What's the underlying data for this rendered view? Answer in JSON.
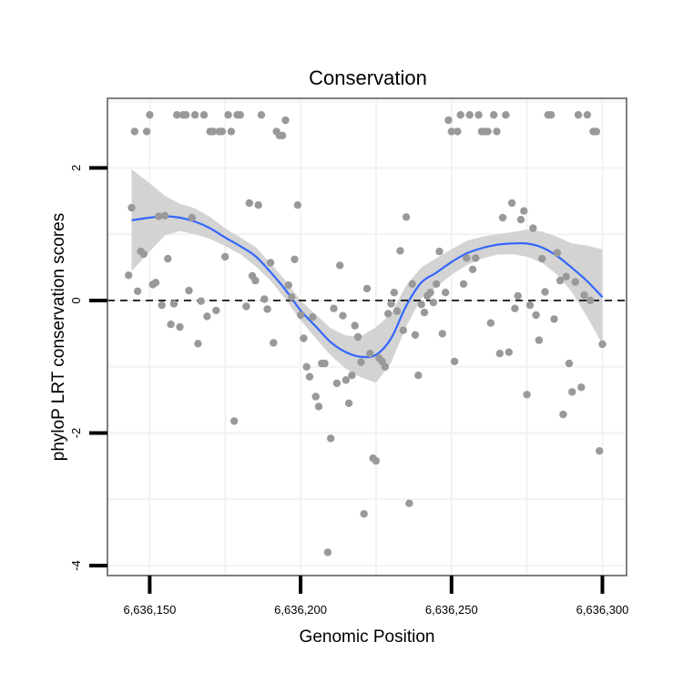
{
  "chart_data": {
    "type": "scatter",
    "title": "Conservation",
    "xlabel": "Genomic Position",
    "ylabel": "phyloP LRT conservation scores",
    "xlim": [
      6636136,
      6636308
    ],
    "ylim": [
      -4.15,
      3.05
    ],
    "x_ticks": [
      {
        "value": 6636150,
        "label": "6,636,150"
      },
      {
        "value": 6636200,
        "label": "6,636,200"
      },
      {
        "value": 6636250,
        "label": "6,636,250"
      },
      {
        "value": 6636300,
        "label": "6,636,300"
      }
    ],
    "y_ticks": [
      {
        "value": 2,
        "label": "2"
      },
      {
        "value": 0,
        "label": "0"
      },
      {
        "value": -2,
        "label": "-2"
      },
      {
        "value": -4,
        "label": "-4"
      }
    ],
    "reference_line": {
      "y": 0,
      "style": "dashed",
      "color": "#000000"
    },
    "colors": {
      "points": "#999999",
      "smooth": "#3366ff",
      "band": "#d3d3d3",
      "frame": "#7f7f7f"
    },
    "smooth": {
      "x": [
        6636144,
        6636150,
        6636155,
        6636160,
        6636165,
        6636170,
        6636175,
        6636180,
        6636185,
        6636190,
        6636195,
        6636200,
        6636205,
        6636210,
        6636215,
        6636220,
        6636225,
        6636230,
        6636235,
        6636240,
        6636245,
        6636250,
        6636255,
        6636260,
        6636265,
        6636270,
        6636275,
        6636280,
        6636285,
        6636290,
        6636295,
        6636300
      ],
      "y": [
        1.21,
        1.25,
        1.27,
        1.25,
        1.19,
        1.09,
        0.95,
        0.82,
        0.67,
        0.43,
        0.16,
        -0.15,
        -0.39,
        -0.63,
        -0.78,
        -0.85,
        -0.82,
        -0.57,
        -0.08,
        0.27,
        0.42,
        0.58,
        0.71,
        0.79,
        0.84,
        0.86,
        0.86,
        0.8,
        0.67,
        0.49,
        0.29,
        0.05
      ],
      "lower": [
        0.44,
        0.74,
        0.98,
        1.05,
        1.0,
        0.93,
        0.82,
        0.7,
        0.52,
        0.3,
        0.02,
        -0.3,
        -0.57,
        -0.83,
        -1.03,
        -1.16,
        -1.24,
        -0.94,
        -0.39,
        0.04,
        0.2,
        0.39,
        0.53,
        0.63,
        0.69,
        0.7,
        0.66,
        0.57,
        0.39,
        0.12,
        -0.25,
        -0.66
      ],
      "upper": [
        1.98,
        1.77,
        1.58,
        1.46,
        1.39,
        1.26,
        1.09,
        0.95,
        0.81,
        0.56,
        0.3,
        0.0,
        -0.21,
        -0.42,
        -0.53,
        -0.54,
        -0.4,
        -0.2,
        0.23,
        0.5,
        0.64,
        0.77,
        0.9,
        0.96,
        1.0,
        1.03,
        1.07,
        1.04,
        0.96,
        0.86,
        0.83,
        0.77
      ]
    },
    "points": [
      [
        6636143,
        0.38
      ],
      [
        6636144,
        1.4
      ],
      [
        6636145,
        2.55
      ],
      [
        6636146,
        0.14
      ],
      [
        6636147,
        0.74
      ],
      [
        6636148,
        0.7
      ],
      [
        6636149,
        2.55
      ],
      [
        6636150,
        2.8
      ],
      [
        6636151,
        0.24
      ],
      [
        6636152,
        0.27
      ],
      [
        6636153,
        1.27
      ],
      [
        6636154,
        -0.07
      ],
      [
        6636155,
        1.28
      ],
      [
        6636156,
        0.63
      ],
      [
        6636157,
        -0.36
      ],
      [
        6636158,
        -0.05
      ],
      [
        6636159,
        2.8
      ],
      [
        6636160,
        -0.4
      ],
      [
        6636161,
        2.8
      ],
      [
        6636162,
        2.8
      ],
      [
        6636163,
        0.15
      ],
      [
        6636164,
        1.25
      ],
      [
        6636165,
        2.8
      ],
      [
        6636166,
        -0.65
      ],
      [
        6636167,
        -0.01
      ],
      [
        6636168,
        2.8
      ],
      [
        6636169,
        -0.24
      ],
      [
        6636170,
        2.55
      ],
      [
        6636171,
        2.55
      ],
      [
        6636172,
        -0.15
      ],
      [
        6636173,
        2.55
      ],
      [
        6636174,
        2.55
      ],
      [
        6636175,
        0.66
      ],
      [
        6636176,
        2.8
      ],
      [
        6636177,
        2.55
      ],
      [
        6636178,
        -1.82
      ],
      [
        6636179,
        2.8
      ],
      [
        6636180,
        2.8
      ],
      [
        6636182,
        -0.09
      ],
      [
        6636183,
        1.47
      ],
      [
        6636184,
        0.37
      ],
      [
        6636185,
        0.3
      ],
      [
        6636186,
        1.44
      ],
      [
        6636187,
        2.8
      ],
      [
        6636188,
        0.02
      ],
      [
        6636189,
        -0.13
      ],
      [
        6636190,
        0.57
      ],
      [
        6636191,
        -0.64
      ],
      [
        6636192,
        2.55
      ],
      [
        6636193,
        2.49
      ],
      [
        6636194,
        2.49
      ],
      [
        6636195,
        2.72
      ],
      [
        6636196,
        0.23
      ],
      [
        6636197,
        0.05
      ],
      [
        6636198,
        0.62
      ],
      [
        6636199,
        1.44
      ],
      [
        6636200,
        -0.22
      ],
      [
        6636201,
        -0.57
      ],
      [
        6636202,
        -1.0
      ],
      [
        6636203,
        -1.15
      ],
      [
        6636204,
        -0.25
      ],
      [
        6636205,
        -1.45
      ],
      [
        6636206,
        -1.6
      ],
      [
        6636207,
        -0.95
      ],
      [
        6636208,
        -0.95
      ],
      [
        6636209,
        -3.8
      ],
      [
        6636210,
        -2.08
      ],
      [
        6636211,
        -0.12
      ],
      [
        6636212,
        -1.25
      ],
      [
        6636213,
        0.53
      ],
      [
        6636214,
        -0.23
      ],
      [
        6636215,
        -1.2
      ],
      [
        6636216,
        -1.55
      ],
      [
        6636217,
        -1.13
      ],
      [
        6636218,
        -0.38
      ],
      [
        6636219,
        -0.55
      ],
      [
        6636220,
        -0.93
      ],
      [
        6636221,
        -3.22
      ],
      [
        6636222,
        0.18
      ],
      [
        6636223,
        -0.8
      ],
      [
        6636224,
        -2.38
      ],
      [
        6636225,
        -2.42
      ],
      [
        6636226,
        -0.87
      ],
      [
        6636227,
        -0.92
      ],
      [
        6636228,
        -1.0
      ],
      [
        6636229,
        -0.2
      ],
      [
        6636230,
        -0.05
      ],
      [
        6636231,
        0.12
      ],
      [
        6636232,
        -0.16
      ],
      [
        6636233,
        0.75
      ],
      [
        6636234,
        -0.45
      ],
      [
        6636235,
        1.26
      ],
      [
        6636236,
        -3.06
      ],
      [
        6636237,
        0.25
      ],
      [
        6636238,
        -0.52
      ],
      [
        6636239,
        -1.13
      ],
      [
        6636240,
        -0.06
      ],
      [
        6636241,
        -0.18
      ],
      [
        6636242,
        0.07
      ],
      [
        6636243,
        0.12
      ],
      [
        6636244,
        -0.03
      ],
      [
        6636245,
        0.25
      ],
      [
        6636246,
        0.74
      ],
      [
        6636247,
        -0.5
      ],
      [
        6636248,
        0.12
      ],
      [
        6636249,
        2.72
      ],
      [
        6636250,
        2.55
      ],
      [
        6636251,
        -0.92
      ],
      [
        6636252,
        2.55
      ],
      [
        6636253,
        2.8
      ],
      [
        6636254,
        0.25
      ],
      [
        6636255,
        0.64
      ],
      [
        6636256,
        2.8
      ],
      [
        6636257,
        0.47
      ],
      [
        6636258,
        0.64
      ],
      [
        6636259,
        2.8
      ],
      [
        6636260,
        2.55
      ],
      [
        6636261,
        2.55
      ],
      [
        6636262,
        2.55
      ],
      [
        6636263,
        -0.34
      ],
      [
        6636264,
        2.8
      ],
      [
        6636265,
        2.55
      ],
      [
        6636266,
        -0.8
      ],
      [
        6636267,
        1.25
      ],
      [
        6636268,
        2.8
      ],
      [
        6636269,
        -0.78
      ],
      [
        6636270,
        1.47
      ],
      [
        6636271,
        -0.12
      ],
      [
        6636272,
        0.07
      ],
      [
        6636273,
        1.22
      ],
      [
        6636274,
        1.35
      ],
      [
        6636275,
        -1.42
      ],
      [
        6636276,
        -0.07
      ],
      [
        6636277,
        1.09
      ],
      [
        6636278,
        -0.22
      ],
      [
        6636279,
        -0.6
      ],
      [
        6636280,
        0.63
      ],
      [
        6636281,
        0.13
      ],
      [
        6636282,
        2.8
      ],
      [
        6636283,
        2.8
      ],
      [
        6636284,
        -0.28
      ],
      [
        6636285,
        0.72
      ],
      [
        6636286,
        0.3
      ],
      [
        6636287,
        -1.72
      ],
      [
        6636288,
        0.36
      ],
      [
        6636289,
        -0.95
      ],
      [
        6636290,
        -1.38
      ],
      [
        6636291,
        0.28
      ],
      [
        6636292,
        2.8
      ],
      [
        6636293,
        -1.31
      ],
      [
        6636294,
        0.08
      ],
      [
        6636295,
        2.8
      ],
      [
        6636296,
        0.0
      ],
      [
        6636297,
        2.55
      ],
      [
        6636298,
        2.55
      ],
      [
        6636299,
        -2.27
      ],
      [
        6636300,
        -0.66
      ]
    ]
  }
}
